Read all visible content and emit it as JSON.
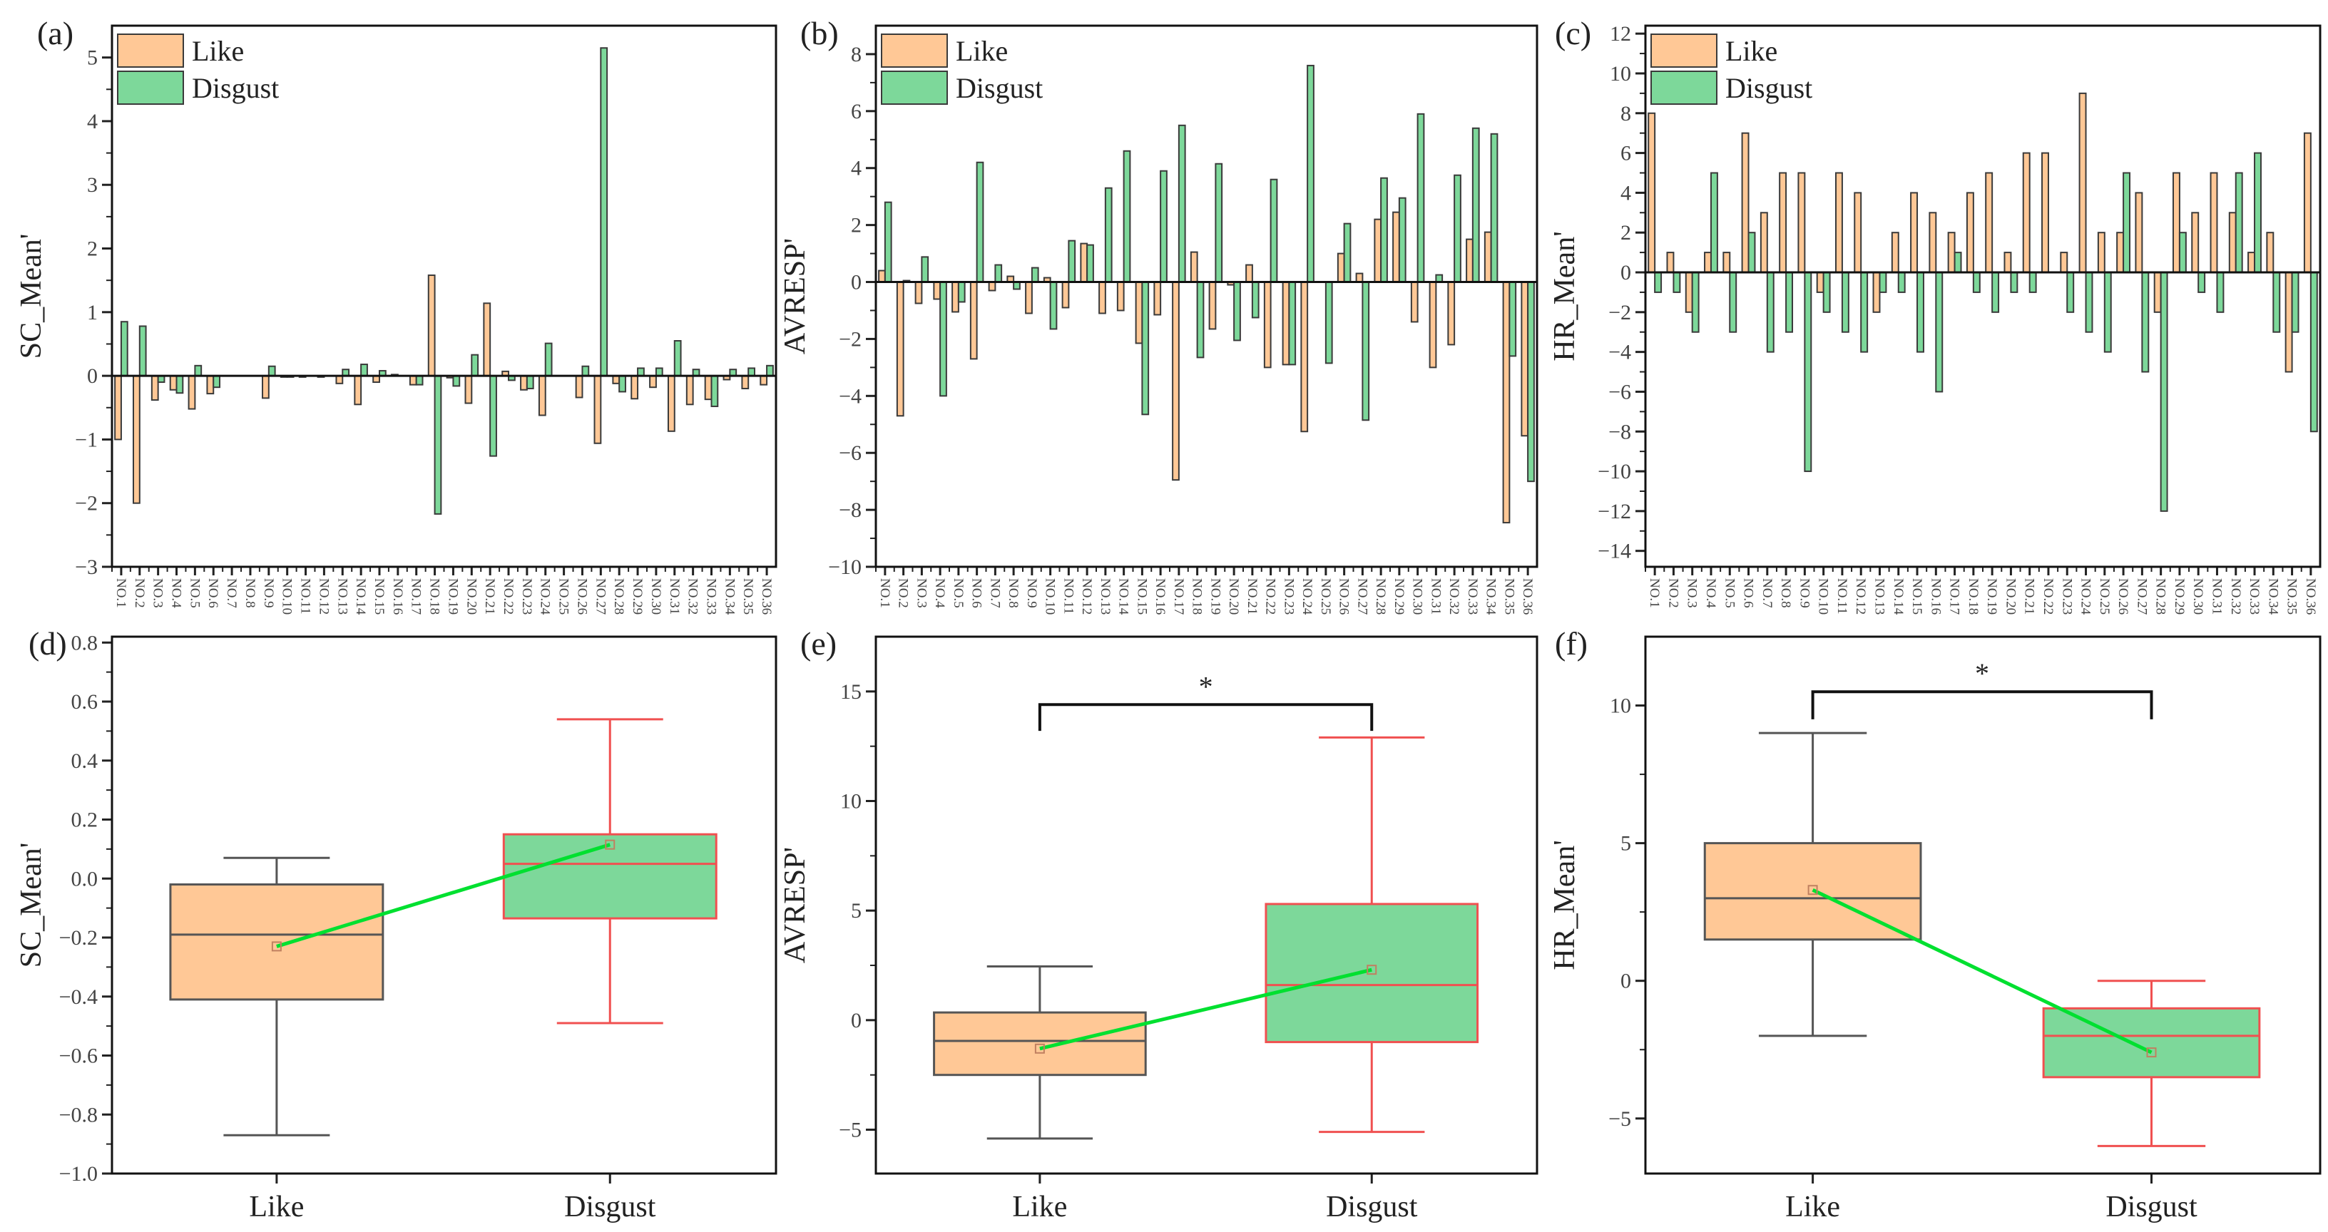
{
  "colors": {
    "like": "#FFC896",
    "disgust": "#7DD89A",
    "bar_outline": "#3a3a3a",
    "box_like_outline": "#555555",
    "box_disgust_outline": "#F05050",
    "mean_line": "#00E030"
  },
  "chart_data": [
    {
      "panel": "(a)",
      "type": "bar",
      "ylabel": "SC_Mean'",
      "ylim": [
        -3,
        5.5
      ],
      "yticks": [
        -3,
        -2,
        -1,
        0,
        1,
        2,
        3,
        4,
        5
      ],
      "ytick_labels": [
        "-3",
        "-2",
        "-1",
        "0",
        "1",
        "2",
        "3",
        "4",
        "5"
      ],
      "legend": "top-left",
      "categories": [
        "NO.1",
        "NO.2",
        "NO.3",
        "NO.4",
        "NO.5",
        "NO.6",
        "NO.7",
        "NO.8",
        "NO.9",
        "NO.10",
        "NO.11",
        "NO.12",
        "NO.13",
        "NO.14",
        "NO.15",
        "NO.16",
        "NO.17",
        "NO.18",
        "NO.19",
        "NO.20",
        "NO.21",
        "NO.22",
        "NO.23",
        "NO.24",
        "NO.25",
        "NO.26",
        "NO.27",
        "NO.28",
        "NO.29",
        "NO.30",
        "NO.31",
        "NO.32",
        "NO.33",
        "NO.34",
        "NO.35",
        "NO.36"
      ],
      "series": [
        {
          "name": "Like",
          "values": [
            -1.0,
            -2.0,
            -0.38,
            -0.22,
            -0.52,
            -0.28,
            0,
            0,
            -0.35,
            -0.02,
            -0.02,
            -0.02,
            -0.12,
            -0.45,
            -0.1,
            0.02,
            -0.14,
            1.58,
            -0.03,
            -0.43,
            1.14,
            0.07,
            -0.22,
            -0.62,
            0,
            -0.34,
            -1.06,
            -0.12,
            -0.36,
            -0.18,
            -0.87,
            -0.45,
            -0.37,
            -0.06,
            -0.2,
            -0.14
          ]
        },
        {
          "name": "Disgust",
          "values": [
            0.85,
            0.78,
            -0.1,
            -0.27,
            0.16,
            -0.18,
            0,
            0,
            0.15,
            -0.02,
            0,
            0,
            0.1,
            0.18,
            0.08,
            0,
            -0.14,
            -2.17,
            -0.16,
            0.33,
            -1.26,
            -0.07,
            -0.2,
            0.51,
            0,
            0.15,
            5.15,
            -0.25,
            0.12,
            0.12,
            0.55,
            0.1,
            -0.48,
            0.1,
            0.12,
            0.16
          ]
        }
      ]
    },
    {
      "panel": "(b)",
      "type": "bar",
      "ylabel": "AVRESP'",
      "ylim": [
        -10,
        9
      ],
      "yticks": [
        -10,
        -8,
        -6,
        -4,
        -2,
        0,
        2,
        4,
        6,
        8
      ],
      "ytick_labels": [
        "-10",
        "-8",
        "-6",
        "-4",
        "-2",
        "0",
        "2",
        "4",
        "6",
        "8"
      ],
      "legend": "top-left",
      "categories": [
        "NO.1",
        "NO.2",
        "NO.3",
        "NO.4",
        "NO.5",
        "NO.6",
        "NO.7",
        "NO.8",
        "NO.9",
        "NO.10",
        "NO.11",
        "NO.12",
        "NO.13",
        "NO.14",
        "NO.15",
        "NO.16",
        "NO.17",
        "NO.18",
        "NO.19",
        "NO.20",
        "NO.21",
        "NO.22",
        "NO.23",
        "NO.24",
        "NO.25",
        "NO.26",
        "NO.27",
        "NO.28",
        "NO.29",
        "NO.30",
        "NO.31",
        "NO.32",
        "NO.33",
        "NO.34",
        "NO.35",
        "NO.36"
      ],
      "series": [
        {
          "name": "Like",
          "values": [
            0.4,
            -4.7,
            -0.75,
            -0.6,
            -1.05,
            -2.7,
            -0.3,
            0.2,
            -1.1,
            0.15,
            -0.9,
            1.35,
            -1.1,
            -1.0,
            -2.15,
            -1.15,
            -6.95,
            1.05,
            -1.65,
            -0.1,
            0.6,
            -3.0,
            -2.9,
            -5.25,
            0,
            1.0,
            0.3,
            2.2,
            2.45,
            -1.4,
            -3.0,
            -2.2,
            1.5,
            1.75,
            -8.45,
            -5.4
          ]
        },
        {
          "name": "Disgust",
          "values": [
            2.8,
            0.05,
            0.88,
            -4.0,
            -0.7,
            4.2,
            0.6,
            -0.25,
            0.5,
            -1.65,
            1.45,
            1.3,
            3.3,
            4.6,
            -4.65,
            3.9,
            5.5,
            -2.65,
            4.15,
            -2.05,
            -1.25,
            3.6,
            -2.9,
            7.6,
            -2.85,
            2.05,
            -4.85,
            3.65,
            2.95,
            5.9,
            0.25,
            3.75,
            5.4,
            5.2,
            -2.6,
            -7.0
          ]
        }
      ]
    },
    {
      "panel": "(c)",
      "type": "bar",
      "ylabel": "HR_Mean'",
      "ylim": [
        -14.8,
        12.4
      ],
      "yticks": [
        -14,
        -12,
        -10,
        -8,
        -6,
        -4,
        -2,
        0,
        2,
        4,
        6,
        8,
        10,
        12
      ],
      "ytick_labels": [
        "-14",
        "-12",
        "-10",
        "-8",
        "-6",
        "-4",
        "-2",
        "0",
        "2",
        "4",
        "6",
        "8",
        "10",
        "12"
      ],
      "legend": "top-left",
      "categories": [
        "NO.1",
        "NO.2",
        "NO.3",
        "NO.4",
        "NO.5",
        "NO.6",
        "NO.7",
        "NO.8",
        "NO.9",
        "NO.10",
        "NO.11",
        "NO.12",
        "NO.13",
        "NO.14",
        "NO.15",
        "NO.16",
        "NO.17",
        "NO.18",
        "NO.19",
        "NO.20",
        "NO.21",
        "NO.22",
        "NO.23",
        "NO.24",
        "NO.25",
        "NO.26",
        "NO.27",
        "NO.28",
        "NO.29",
        "NO.30",
        "NO.31",
        "NO.32",
        "NO.33",
        "NO.34",
        "NO.35",
        "NO.36"
      ],
      "series": [
        {
          "name": "Like",
          "values": [
            8,
            1,
            -2,
            1,
            1,
            7,
            3,
            5,
            5,
            -1,
            5,
            4,
            -2,
            2,
            4,
            3,
            2,
            4,
            5,
            1,
            6,
            6,
            1,
            9,
            2,
            2,
            4,
            -2,
            5,
            3,
            5,
            3,
            1,
            2,
            -5,
            7
          ]
        },
        {
          "name": "Disgust",
          "values": [
            -1,
            -1,
            -3,
            5,
            -3,
            2,
            -4,
            -3,
            -10,
            -2,
            -3,
            -4,
            -1,
            -1,
            -4,
            -6,
            1,
            -1,
            -2,
            -1,
            -1,
            0,
            -2,
            -3,
            -4,
            5,
            -5,
            -12,
            2,
            -1,
            -2,
            5,
            6,
            -3,
            -3,
            -8
          ]
        }
      ]
    },
    {
      "panel": "(d)",
      "type": "box",
      "ylabel": "SC_Mean'",
      "ylim": [
        -1.0,
        0.82
      ],
      "yticks": [
        -1.0,
        -0.8,
        -0.6,
        -0.4,
        -0.2,
        0.0,
        0.2,
        0.4,
        0.6,
        0.8
      ],
      "ytick_labels": [
        "-1.0",
        "-0.8",
        "-0.6",
        "-0.4",
        "-0.2",
        "0.0",
        "0.2",
        "0.4",
        "0.6",
        "0.8"
      ],
      "categories": [
        "Like",
        "Disgust"
      ],
      "boxes": [
        {
          "min": -0.87,
          "q1": -0.41,
          "median": -0.19,
          "q3": -0.02,
          "max": 0.07,
          "mean": -0.23
        },
        {
          "min": -0.49,
          "q1": -0.135,
          "median": 0.05,
          "q3": 0.15,
          "max": 0.54,
          "mean": 0.115
        }
      ],
      "significance": null
    },
    {
      "panel": "(e)",
      "type": "box",
      "ylabel": "AVRESP'",
      "ylim": [
        -7,
        17.5
      ],
      "yticks": [
        -5,
        0,
        5,
        10,
        15
      ],
      "ytick_labels": [
        "-5",
        "0",
        "5",
        "10",
        "15"
      ],
      "categories": [
        "Like",
        "Disgust"
      ],
      "boxes": [
        {
          "min": -5.4,
          "q1": -2.5,
          "median": -0.95,
          "q3": 0.35,
          "max": 2.45,
          "mean": -1.3
        },
        {
          "min": -5.1,
          "q1": -1.0,
          "median": 1.6,
          "q3": 5.3,
          "max": 12.9,
          "mean": 2.3
        }
      ],
      "significance": {
        "label": "*",
        "level": 14.4,
        "end": 13.2
      }
    },
    {
      "panel": "(f)",
      "type": "box",
      "ylabel": "HR_Mean'",
      "ylim": [
        -7,
        12.5
      ],
      "yticks": [
        -5,
        0,
        5,
        10
      ],
      "ytick_labels": [
        "-5",
        "0",
        "5",
        "10"
      ],
      "categories": [
        "Like",
        "Disgust"
      ],
      "boxes": [
        {
          "min": -2,
          "q1": 1.5,
          "median": 3,
          "q3": 5,
          "max": 9,
          "mean": 3.3
        },
        {
          "min": -6,
          "q1": -3.5,
          "median": -2,
          "q3": -1,
          "max": 0,
          "mean": -2.6
        }
      ],
      "significance": {
        "label": "*",
        "level": 10.5,
        "end": 9.5
      }
    }
  ]
}
